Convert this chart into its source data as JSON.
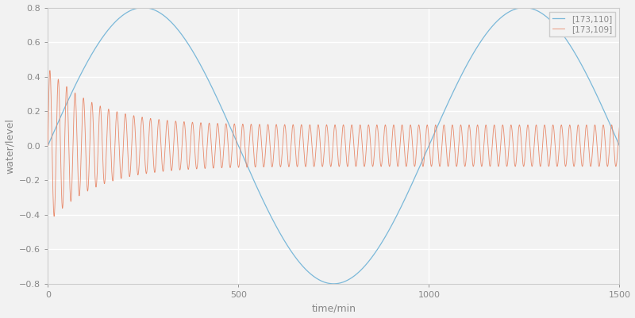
{
  "title": "",
  "xlabel": "time/min",
  "ylabel": "water/level",
  "xlim": [
    0,
    1500
  ],
  "ylim": [
    -0.8,
    0.8
  ],
  "xticks": [
    0,
    500,
    1000,
    1500
  ],
  "yticks": [
    -0.8,
    -0.6,
    -0.4,
    -0.2,
    0,
    0.2,
    0.4,
    0.6,
    0.8
  ],
  "legend_labels": [
    "[173,110]",
    "[173,109]"
  ],
  "blue_color": "#7ab8d9",
  "orange_color": "#e8896a",
  "blue_amplitude": 0.8,
  "blue_period": 1000,
  "orange_amplitude_init": 0.45,
  "orange_amplitude_final": 0.12,
  "orange_decay": 0.008,
  "orange_period": 22,
  "n_points": 8000,
  "background_color": "#f2f2f2",
  "grid_color": "#ffffff",
  "tick_label_color": "#888888",
  "spine_color": "#cccccc",
  "tick_label_size": 8,
  "label_fontsize": 9,
  "legend_fontsize": 7.5
}
